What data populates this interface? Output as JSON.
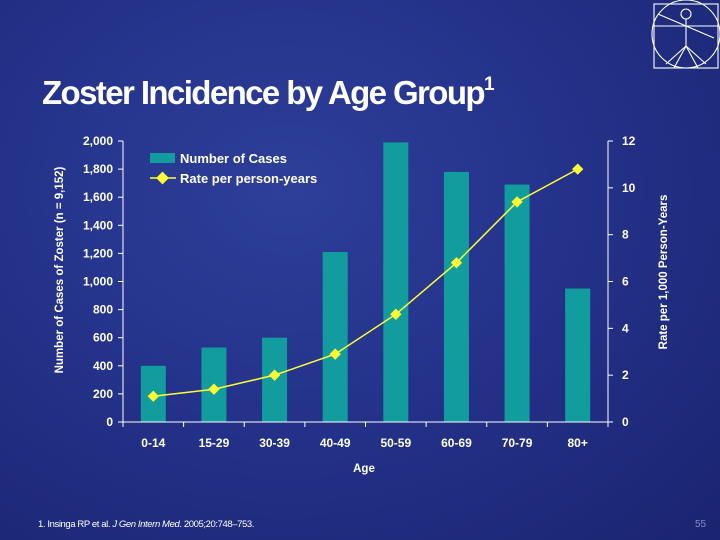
{
  "slide": {
    "title": "Zoster Incidence by Age Group",
    "title_superscript": "1",
    "footnote": {
      "prefix": "1. Insinga RP et al. ",
      "journal": "J Gen Intern Med",
      "suffix": ". 2005;20:748–753."
    },
    "page_number": "55",
    "logo_icon": "vitruvian-man-logo"
  },
  "chart_data": {
    "type": "bar",
    "categories": [
      "0-14",
      "15-29",
      "30-39",
      "40-49",
      "50-59",
      "60-69",
      "70-79",
      "80+"
    ],
    "xlabel": "Age",
    "ylabel": "Number of Cases of Zoster (n = 9,152)",
    "y2label": "Rate per 1,000 Person-Years",
    "ylim": [
      0,
      2000
    ],
    "y2lim": [
      0,
      12
    ],
    "yticks": [
      "0",
      "200",
      "400",
      "600",
      "800",
      "1,000",
      "1,200",
      "1,400",
      "1,600",
      "1,800",
      "2,000"
    ],
    "y2ticks": [
      "0",
      "2",
      "4",
      "6",
      "8",
      "10",
      "12"
    ],
    "series": [
      {
        "name": "Number of Cases",
        "type": "bar",
        "axis": "left",
        "color": "#139c9e",
        "values": [
          400,
          530,
          600,
          1210,
          1990,
          1780,
          1690,
          950
        ]
      },
      {
        "name": "Rate per person-years",
        "type": "line",
        "axis": "right",
        "color": "#ffff33",
        "values": [
          1.1,
          1.4,
          2.0,
          2.9,
          4.6,
          6.8,
          9.4,
          10.8
        ]
      }
    ],
    "legend_position": "top-left",
    "grid": false
  }
}
